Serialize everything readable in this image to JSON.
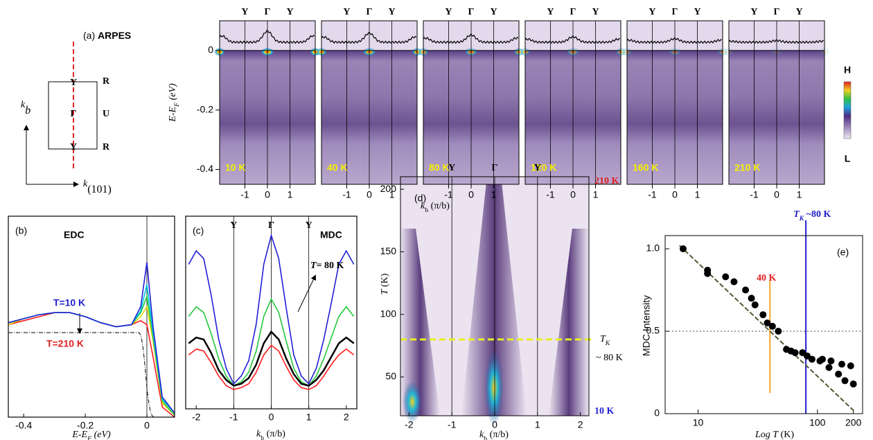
{
  "diagram": {
    "label": "(a)",
    "title": "ARPES",
    "points": [
      "Y",
      "Γ",
      "Y"
    ],
    "corners": [
      "R",
      "U",
      "R"
    ],
    "axis_v": [
      "k",
      "b"
    ],
    "axis_h": [
      "k",
      "(101)"
    ]
  },
  "colorbar": {
    "high": "H",
    "low": "L"
  },
  "chart_data": [
    {
      "type": "heatmap",
      "ylabel": [
        "E-E",
        "F",
        " (eV)"
      ],
      "xlabel": [
        "k",
        "b",
        " (π/b)"
      ],
      "ylim": [
        -0.45,
        0.1
      ],
      "yticks": [
        0,
        -0.2,
        -0.4
      ],
      "xlim": [
        -2.12,
        2.12
      ],
      "xticks": [
        -1,
        0,
        1
      ],
      "symmetry_points": [
        "Y",
        "Γ",
        "Y"
      ],
      "symmetry_x": [
        -1,
        0,
        1
      ],
      "panels": [
        "10 K",
        "40 K",
        "80 K",
        "120 K",
        "160 K",
        "210 K"
      ]
    },
    {
      "type": "line",
      "label": "(b)",
      "title": "EDC",
      "annotations": [
        "T=10 K",
        "T=210 K"
      ],
      "xlabel": [
        "E-E",
        "F",
        " (eV)"
      ],
      "xlim": [
        -0.45,
        0.09
      ],
      "xticks": [
        -0.4,
        -0.2,
        0
      ],
      "ylim": [
        0,
        1
      ],
      "x": [
        -0.45,
        -0.4,
        -0.35,
        -0.3,
        -0.25,
        -0.2,
        -0.15,
        -0.1,
        -0.05,
        -0.02,
        0,
        0.02,
        0.05,
        0.09
      ],
      "series": [
        {
          "color": "#ff1a1a",
          "values": [
            0.46,
            0.48,
            0.5,
            0.52,
            0.52,
            0.5,
            0.47,
            0.45,
            0.46,
            0.48,
            0.46,
            0.3,
            0.05,
            0
          ]
        },
        {
          "color": "#e0d400",
          "values": [
            0.46,
            0.49,
            0.51,
            0.52,
            0.52,
            0.5,
            0.47,
            0.45,
            0.46,
            0.5,
            0.55,
            0.38,
            0.07,
            0.01
          ]
        },
        {
          "color": "#22c83a",
          "values": [
            0.47,
            0.49,
            0.51,
            0.52,
            0.52,
            0.5,
            0.47,
            0.45,
            0.46,
            0.52,
            0.6,
            0.4,
            0.08,
            0.01
          ]
        },
        {
          "color": "#00c8e0",
          "values": [
            0.47,
            0.49,
            0.51,
            0.52,
            0.52,
            0.5,
            0.47,
            0.45,
            0.46,
            0.53,
            0.66,
            0.42,
            0.09,
            0.02
          ]
        },
        {
          "color": "#1f1fd6",
          "values": [
            0.47,
            0.49,
            0.51,
            0.52,
            0.52,
            0.5,
            0.47,
            0.45,
            0.46,
            0.55,
            0.77,
            0.45,
            0.1,
            0.02
          ]
        }
      ]
    },
    {
      "type": "line",
      "label": "(c)",
      "title": "MDC",
      "annotation": [
        "T",
        "= 80 K"
      ],
      "xlabel": [
        "k",
        "b",
        " (π/b)"
      ],
      "xlim": [
        -2.28,
        2.28
      ],
      "xticks": [
        -2,
        -1,
        0,
        1,
        2
      ],
      "ylim": [
        0,
        1
      ],
      "symmetry_points": [
        "Y",
        "Γ",
        "Y"
      ],
      "symmetry_x": [
        -1,
        0,
        1
      ],
      "x": [
        -2.2,
        -2,
        -1.8,
        -1.6,
        -1.4,
        -1.2,
        -1,
        -0.8,
        -0.6,
        -0.4,
        -0.2,
        0,
        0.2,
        0.4,
        0.6,
        0.8,
        1,
        1.2,
        1.4,
        1.6,
        1.8,
        2,
        2.2
      ],
      "series": [
        {
          "color": "#1f1fd6",
          "values": [
            0.75,
            0.82,
            0.78,
            0.59,
            0.36,
            0.21,
            0.13,
            0.17,
            0.25,
            0.44,
            0.75,
            0.9,
            0.78,
            0.52,
            0.28,
            0.17,
            0.13,
            0.21,
            0.36,
            0.55,
            0.75,
            0.82,
            0.75
          ]
        },
        {
          "color": "#22c83a",
          "values": [
            0.48,
            0.53,
            0.5,
            0.39,
            0.26,
            0.17,
            0.12,
            0.14,
            0.19,
            0.3,
            0.48,
            0.57,
            0.5,
            0.35,
            0.21,
            0.14,
            0.12,
            0.17,
            0.26,
            0.37,
            0.48,
            0.53,
            0.48
          ]
        },
        {
          "color": "#ff1a1a",
          "values": [
            0.28,
            0.31,
            0.3,
            0.24,
            0.17,
            0.12,
            0.1,
            0.11,
            0.13,
            0.19,
            0.28,
            0.33,
            0.3,
            0.22,
            0.15,
            0.11,
            0.1,
            0.12,
            0.17,
            0.23,
            0.28,
            0.31,
            0.28
          ]
        },
        {
          "color": "#000000",
          "values": [
            0.34,
            0.37,
            0.36,
            0.29,
            0.2,
            0.15,
            0.12,
            0.13,
            0.16,
            0.23,
            0.34,
            0.4,
            0.36,
            0.26,
            0.18,
            0.13,
            0.12,
            0.15,
            0.2,
            0.27,
            0.34,
            0.37,
            0.34
          ]
        }
      ]
    },
    {
      "type": "heatmap",
      "label": "(d)",
      "ylabel": [
        "T",
        " (K)"
      ],
      "xlabel": [
        "k",
        "b",
        " (π/b)"
      ],
      "ylim": [
        19,
        210
      ],
      "yticks": [
        50,
        100,
        150,
        200
      ],
      "xlim": [
        -2.2,
        2.2
      ],
      "xticks": [
        -2,
        -1,
        0,
        1,
        2
      ],
      "symmetry_points": [
        "Y",
        "Γ",
        "Y"
      ],
      "symmetry_x": [
        -1,
        0,
        1
      ],
      "top_label": "210 K",
      "bottom_label": "10 K",
      "tk": 80,
      "tk_label": [
        "T",
        "K",
        "~ 80 K"
      ]
    },
    {
      "type": "scatter",
      "label": "(e)",
      "ylabel": "MDC  Intensity",
      "xlabel": [
        "Log T",
        " (K)"
      ],
      "xscale": "log",
      "xlim": [
        5.3,
        239
      ],
      "xticks": [
        10,
        100,
        200
      ],
      "ylim": [
        0,
        1.08
      ],
      "yticks": [
        0,
        0.5,
        {
          "value": 1,
          "label": "1.0"
        }
      ],
      "x": [
        7.5,
        12,
        12,
        17,
        20,
        25,
        28,
        30,
        35,
        38,
        42,
        47,
        55,
        60,
        65,
        75,
        82,
        90,
        105,
        110,
        125,
        130,
        150,
        160,
        170,
        190,
        200
      ],
      "values": [
        1.0,
        0.87,
        0.85,
        0.83,
        0.8,
        0.75,
        0.7,
        0.66,
        0.6,
        0.55,
        0.53,
        0.5,
        0.39,
        0.38,
        0.37,
        0.37,
        0.35,
        0.33,
        0.32,
        0.33,
        0.28,
        0.32,
        0.24,
        0.3,
        0.2,
        0.29,
        0.18
      ],
      "fit": {
        "x": [
          7,
          200
        ],
        "values": [
          1.02,
          0.02
        ]
      },
      "reference": 0.5,
      "marker_40": {
        "x": 40,
        "label": "40 K",
        "color": "#f5a623"
      },
      "marker_tk": {
        "x": 80,
        "label": [
          "T",
          "K",
          " ~80 K"
        ],
        "color": "#1f1fc8"
      }
    }
  ]
}
